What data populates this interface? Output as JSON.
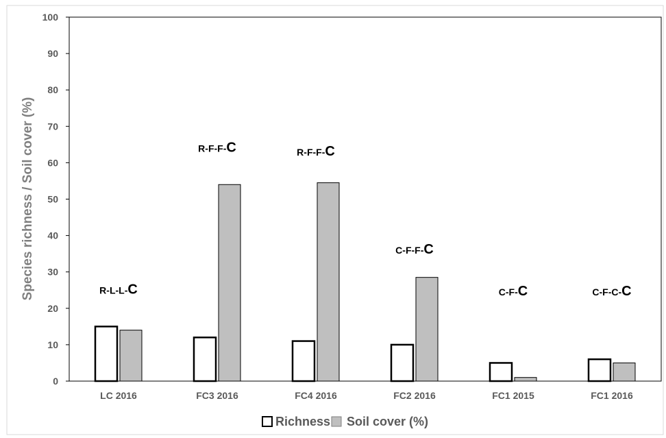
{
  "chart_data": {
    "type": "bar",
    "title": "",
    "xlabel": "",
    "ylabel": "Species richness / Soil cover (%)",
    "ylim": [
      0,
      100
    ],
    "yticks": [
      0,
      10,
      20,
      30,
      40,
      50,
      60,
      70,
      80,
      90,
      100
    ],
    "grid": false,
    "legend_position": "bottom",
    "categories": [
      "LC 2016",
      "FC3 2016",
      "FC4 2016",
      "FC2 2016",
      "FC1 2015",
      "FC1 2016"
    ],
    "series": [
      {
        "name": "Richness",
        "values": [
          15,
          12,
          11,
          10,
          5,
          6
        ],
        "color": "#ffffff",
        "stroke": "#000000"
      },
      {
        "name": "Soil cover (%)",
        "values": [
          14,
          54,
          54.5,
          28.5,
          1,
          5
        ],
        "color": "#bfbfbf",
        "stroke": "#000000"
      }
    ],
    "annotations": [
      {
        "category": "LC 2016",
        "prefix": "R-L-L-",
        "suffix": "C",
        "y": 24
      },
      {
        "category": "FC3 2016",
        "prefix": "R-F-F-",
        "suffix": "C",
        "y": 63
      },
      {
        "category": "FC4 2016",
        "prefix": "R-F-F-",
        "suffix": "C",
        "y": 62
      },
      {
        "category": "FC2 2016",
        "prefix": "C-F-F-",
        "suffix": "C",
        "y": 35
      },
      {
        "category": "FC1 2015",
        "prefix": "C-F-",
        "suffix": "C",
        "y": 23.5
      },
      {
        "category": "FC1 2016",
        "prefix": "C-F-C-",
        "suffix": "C",
        "y": 23.5
      }
    ]
  }
}
